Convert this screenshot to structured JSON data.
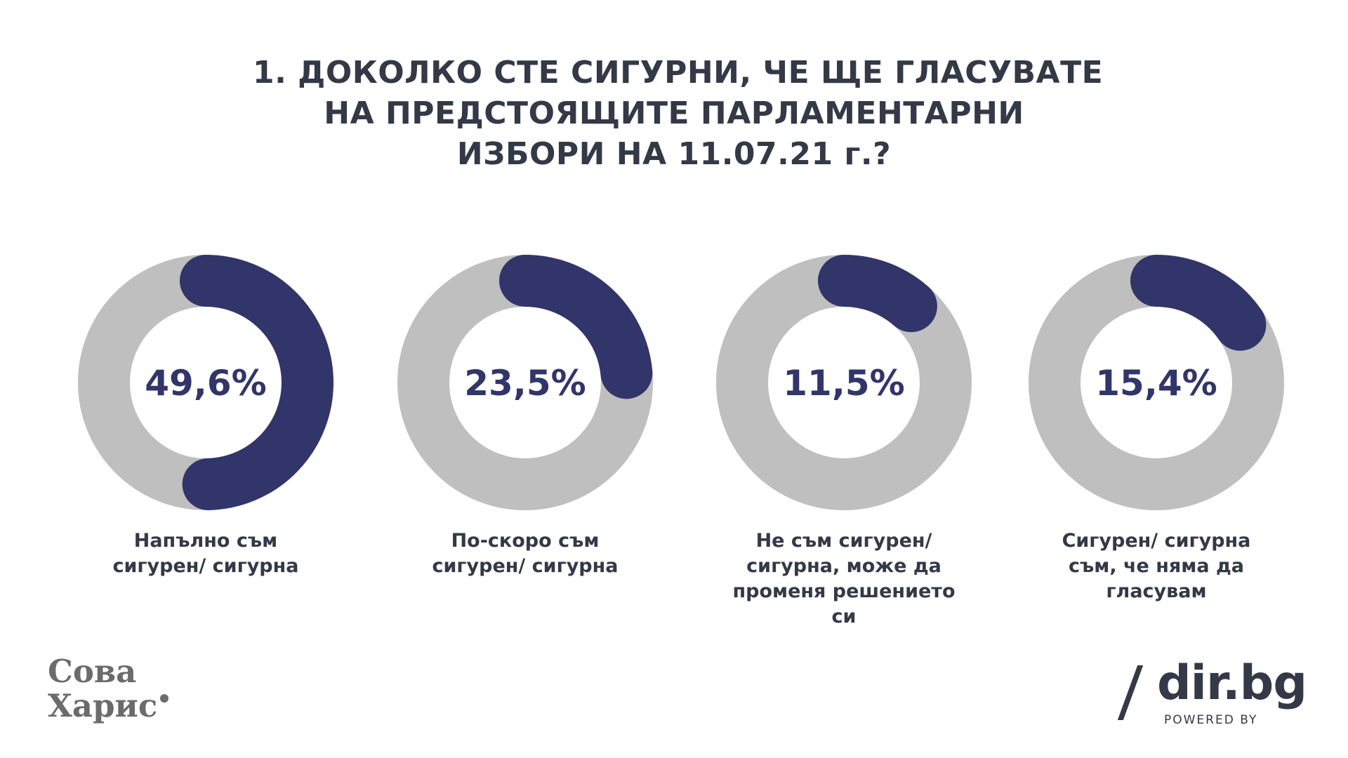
{
  "chart_data": {
    "type": "donut",
    "title": [
      "1.  ДОКОЛКО СТЕ СИГУРНИ, ЧЕ ЩЕ ГЛАСУВАТЕ",
      "НА ПРЕДСТОЯЩИТЕ ПАРЛАМЕНТАРНИ",
      "ИЗБОРИ НА 11.07.21 г.?"
    ],
    "items": [
      {
        "value": 49.6,
        "label": "49,6%",
        "caption": [
          "Напълно съм",
          "сигурен/ сигурна"
        ]
      },
      {
        "value": 23.5,
        "label": "23,5%",
        "caption": [
          "По-скоро съм",
          "сигурен/ сигурна"
        ]
      },
      {
        "value": 11.5,
        "label": "11,5%",
        "caption": [
          "Не съм сигурен/",
          "сигурна, може да",
          "променя решението",
          "си"
        ]
      },
      {
        "value": 15.4,
        "label": "15,4%",
        "caption": [
          "Сигурен/ сигурна",
          "съм, че няма да",
          "гласувам"
        ]
      }
    ],
    "colors": {
      "value": "#313569",
      "track": "#bfbfbf",
      "text": "#333946"
    }
  },
  "logos": {
    "sova_line1": "Сова",
    "sova_line2": "Харис",
    "dir_name": "dir.bg",
    "dir_powered": "POWERED BY"
  }
}
